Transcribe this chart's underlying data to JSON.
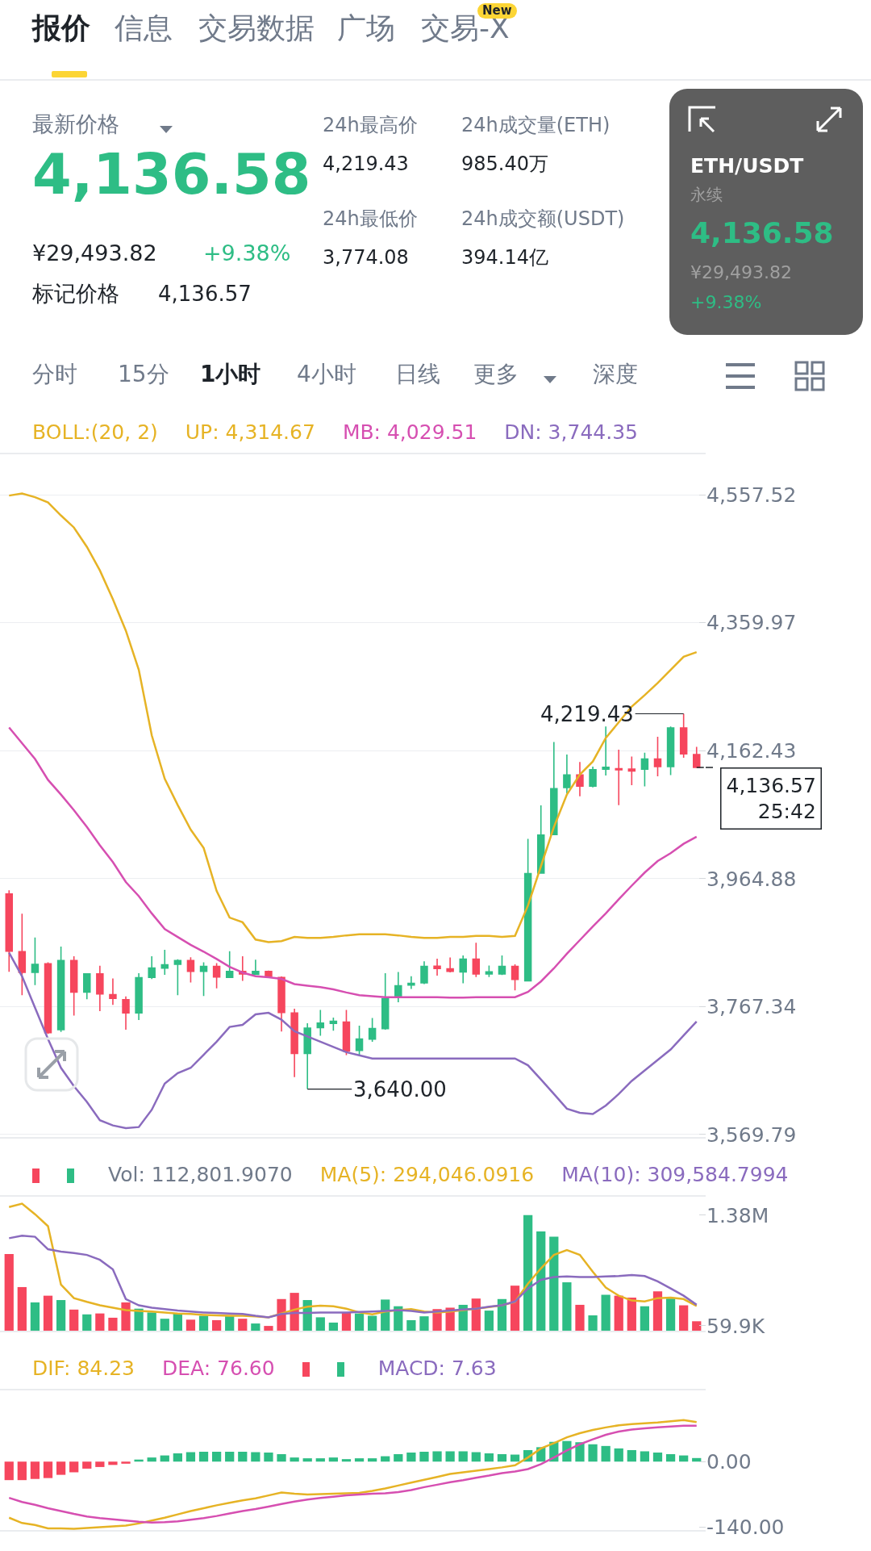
{
  "chart_data": [
    {
      "type": "other",
      "annotations": [
        "报价",
        "信息",
        "交易数据",
        "广场",
        "交易-X",
        "New",
        "最新价格",
        "4,136.58",
        "¥29,493.82",
        "+9.38%",
        "标记价格",
        "4,136.57",
        "24h最高价",
        "4,219.43",
        "24h最低价",
        "3,774.08",
        "24h成交量(ETH)",
        "985.40万",
        "24h成交额(USDT)",
        "394.14亿",
        "分时",
        "15分",
        "1小时",
        "4小时",
        "日线",
        "更多",
        "深度",
        "ETH/USDT",
        "永续",
        "4,136.58",
        "¥29,493.82",
        "+9.38%"
      ]
    },
    {
      "type": "candlestick",
      "legend_title": "BOLL:(20, 2)",
      "categories": [
        null,
        null,
        null,
        null,
        null,
        null,
        null,
        null,
        null,
        null,
        null,
        null,
        null,
        null,
        null,
        null,
        null,
        null,
        null,
        null,
        null,
        null,
        null,
        null,
        null,
        null,
        null,
        null,
        null,
        null,
        null,
        null,
        null,
        null,
        null,
        null,
        null,
        null,
        null,
        null,
        null,
        null,
        null,
        null,
        null,
        null,
        null,
        null,
        null,
        null,
        null,
        null,
        null,
        null
      ],
      "ohlc": [
        [
          3941.4,
          3946.9,
          3821.0,
          3853.0
        ],
        [
          3852.2,
          3910.9,
          3784.9,
          3820.2
        ],
        [
          3820.2,
          3874.1,
          3800.6,
          3832.7
        ],
        [
          3833.4,
          3835.8,
          3725.1,
          3727.1
        ],
        [
          3731.8,
          3860.1,
          3728.3,
          3838.6
        ],
        [
          3838.6,
          3845.1,
          3753.6,
          3789.6
        ],
        [
          3789.6,
          3817.8,
          3778.7,
          3817.8
        ],
        [
          3817.8,
          3830.4,
          3760.3,
          3786.9
        ],
        [
          3785.8,
          3810.8,
          3770.0,
          3779.9
        ],
        [
          3777.9,
          3783.0,
          3731.8,
          3757.6
        ],
        [
          3757.6,
          3819.0,
          3746.6,
          3811.9
        ],
        [
          3812.3,
          3845.1,
          3809.9,
          3826.8
        ],
        [
          3826.8,
          3855.0,
          3816.3,
          3831.9
        ],
        [
          3832.7,
          3840.5,
          3784.9,
          3838.6
        ],
        [
          3838.6,
          3843.6,
          3804.5,
          3821.7
        ],
        [
          3821.7,
          3835.8,
          3783.7,
          3829.5
        ],
        [
          3829.5,
          3834.6,
          3795.5,
          3813.1
        ],
        [
          3812.3,
          3853.0,
          3812.3,
          3821.7
        ],
        [
          3821.7,
          3845.1,
          3807.2,
          3817.8
        ],
        [
          3817.0,
          3839.8,
          3816.3,
          3821.7
        ],
        [
          3821.7,
          3822.9,
          3813.1,
          3813.9
        ],
        [
          3812.3,
          3813.9,
          3729.0,
          3758.3
        ],
        [
          3757.6,
          3764.2,
          3658.5,
          3694.9
        ],
        [
          3694.9,
          3741.8,
          3640.0,
          3734.1
        ],
        [
          3734.8,
          3762.3,
          3722.4,
          3741.8
        ],
        [
          3741.5,
          3750.5,
          3730.1,
          3744.7
        ],
        [
          3743.5,
          3762.3,
          3692.6,
          3698.9
        ],
        [
          3699.6,
          3738.0,
          3692.6,
          3717.2
        ],
        [
          3717.2,
          3749.7,
          3713.0,
          3733.4
        ],
        [
          3733.4,
          3819.0,
          3731.8,
          3779.5
        ],
        [
          3783.8,
          3820.9,
          3774.0,
          3799.4
        ],
        [
          3800.6,
          3814.3,
          3794.7,
          3803.3
        ],
        [
          3804.1,
          3837.4,
          3802.1,
          3829.5
        ],
        [
          3829.9,
          3841.3,
          3815.1,
          3826.0
        ],
        [
          3825.6,
          3843.2,
          3820.1,
          3821.7
        ],
        [
          3820.9,
          3846.4,
          3803.3,
          3840.5
        ],
        [
          3840.5,
          3865.9,
          3813.1,
          3817.8
        ],
        [
          3817.8,
          3830.7,
          3813.1,
          3820.9
        ],
        [
          3817.8,
          3846.4,
          3816.2,
          3829.5
        ],
        [
          3829.5,
          3832.7,
          3792.4,
          3809.2
        ],
        [
          3807.2,
          4026.3,
          3806.1,
          3972.7
        ],
        [
          3973.5,
          4078.0,
          3973.5,
          4032.2
        ],
        [
          4033.0,
          4175.8,
          4033.0,
          4103.8
        ],
        [
          4105.4,
          4156.6,
          4096.8,
          4124.9
        ],
        [
          4124.9,
          4144.9,
          4092.1,
          4107.7
        ],
        [
          4107.7,
          4137.8,
          4105.8,
          4133.1
        ],
        [
          4133.9,
          4199.7,
          4124.1,
          4136.7
        ],
        [
          4134.7,
          4164.1,
          4078.4,
          4132.8
        ],
        [
          4133.9,
          4153.5,
          4109.3,
          4131.2
        ],
        [
          4133.9,
          4159.4,
          4107.3,
          4149.6
        ],
        [
          4149.6,
          4184.0,
          4123.0,
          4137.8
        ],
        [
          4137.8,
          4199.7,
          4124.9,
          4197.7
        ],
        [
          4197.7,
          4219.43,
          4151.5,
          4157.4
        ],
        [
          4156.6,
          4168.4,
          4135.9,
          4136.57
        ]
      ],
      "colors": [
        "#f6465d",
        "#f6465d",
        "#2ebd85",
        "#f6465d",
        "#2ebd85",
        "#f6465d",
        "#2ebd85",
        "#f6465d",
        "#f6465d",
        "#f6465d",
        "#2ebd85",
        "#2ebd85",
        "#2ebd85",
        "#2ebd85",
        "#f6465d",
        "#2ebd85",
        "#f6465d",
        "#2ebd85",
        "#f6465d",
        "#2ebd85",
        "#f6465d",
        "#f6465d",
        "#f6465d",
        "#2ebd85",
        "#2ebd85",
        "#2ebd85",
        "#f6465d",
        "#2ebd85",
        "#2ebd85",
        "#2ebd85",
        "#2ebd85",
        "#2ebd85",
        "#2ebd85",
        "#f6465d",
        "#f6465d",
        "#2ebd85",
        "#f6465d",
        "#2ebd85",
        "#2ebd85",
        "#f6465d",
        "#2ebd85",
        "#2ebd85",
        "#2ebd85",
        "#2ebd85",
        "#f6465d",
        "#2ebd85",
        "#2ebd85",
        "#f6465d",
        "#f6465d",
        "#2ebd85",
        "#f6465d",
        "#2ebd85",
        "#f6465d",
        "#f6465d"
      ],
      "series": [
        {
          "type": "line",
          "name": "UP: 4,314.67",
          "color": "#e6b325",
          "values": [
            4556.3,
            4559.6,
            4553.9,
            4545.8,
            4525.6,
            4507.0,
            4477.1,
            4440.7,
            4396.3,
            4347.8,
            4287.2,
            4186.1,
            4119.0,
            4078.6,
            4040.6,
            4012.3,
            3946.0,
            3904.8,
            3897.5,
            3870.8,
            3866.8,
            3868.4,
            3874.9,
            3873.3,
            3873.3,
            3874.9,
            3877.3,
            3878.9,
            3878.9,
            3878.9,
            3877.3,
            3874.9,
            3873.3,
            3873.3,
            3874.9,
            3874.9,
            3876.5,
            3876.5,
            3874.9,
            3876.5,
            3923.4,
            3984.0,
            4044.6,
            4094.7,
            4125.5,
            4145.7,
            4182.1,
            4206.3,
            4230.6,
            4248.3,
            4266.9,
            4287.2,
            4307.4,
            4314.67
          ]
        },
        {
          "type": "line",
          "name": "MB: 4,029.51",
          "color": "#d64fb1",
          "values": [
            4198.2,
            4173.9,
            4149.7,
            4117.4,
            4094.7,
            4070.5,
            4044.6,
            4016.3,
            3990.5,
            3959.7,
            3937.9,
            3911.2,
            3887.0,
            3874.9,
            3862.7,
            3852.2,
            3840.9,
            3828.8,
            3819.9,
            3814.2,
            3812.6,
            3810.2,
            3802.1,
            3799.7,
            3797.3,
            3794.0,
            3789.2,
            3785.1,
            3783.5,
            3781.9,
            3781.9,
            3781.9,
            3781.9,
            3781.9,
            3781.1,
            3781.1,
            3781.9,
            3781.9,
            3781.9,
            3781.9,
            3790.0,
            3806.2,
            3826.4,
            3849.0,
            3870.0,
            3891.0,
            3911.2,
            3933.1,
            3954.1,
            3974.3,
            3992.1,
            4004.2,
            4018.7,
            4029.51
          ]
        },
        {
          "type": "line",
          "name": "DN: 3,744.35",
          "color": "#8a6bbe",
          "values": [
            3850.6,
            3814.2,
            3765.7,
            3717.3,
            3672.8,
            3644.5,
            3620.3,
            3592.0,
            3583.9,
            3579.8,
            3581.4,
            3608.1,
            3648.5,
            3664.7,
            3672.8,
            3693.0,
            3713.2,
            3735.9,
            3739.1,
            3755.3,
            3757.7,
            3747.2,
            3729.4,
            3721.3,
            3713.2,
            3705.1,
            3697.0,
            3692.2,
            3687.3,
            3687.3,
            3687.3,
            3687.3,
            3687.3,
            3687.3,
            3687.3,
            3687.3,
            3687.3,
            3687.3,
            3687.3,
            3687.3,
            3676.8,
            3655.0,
            3632.4,
            3609.7,
            3603.3,
            3601.6,
            3614.6,
            3632.4,
            3652.6,
            3668.7,
            3684.9,
            3701.1,
            3722.9,
            3744.35
          ]
        }
      ],
      "ylim": [
        3566,
        4620
      ],
      "yticks": [
        {
          "value": 3569.79,
          "label": "3,569.79"
        },
        {
          "value": 3767.34,
          "label": "3,767.34"
        },
        {
          "value": 3964.88,
          "label": "3,964.88"
        },
        {
          "value": 4162.43,
          "label": "4,162.43"
        },
        {
          "value": 4359.97,
          "label": "4,359.97"
        },
        {
          "value": 4557.52,
          "label": "4,557.52"
        }
      ],
      "grid": "y",
      "ref_lines": [
        {
          "axis": "y",
          "value": 4136.57,
          "label": "4,136.57",
          "line_style": "dashed"
        }
      ],
      "annotations": [
        "4,219.43",
        "3,640.00",
        "25:42"
      ]
    },
    {
      "type": "bar",
      "categories": [
        null,
        null,
        null,
        null,
        null,
        null,
        null,
        null,
        null,
        null,
        null,
        null,
        null,
        null,
        null,
        null,
        null,
        null,
        null,
        null,
        null,
        null,
        null,
        null,
        null,
        null,
        null,
        null,
        null,
        null,
        null,
        null,
        null,
        null,
        null,
        null,
        null,
        null,
        null,
        null,
        null,
        null,
        null,
        null,
        null,
        null,
        null,
        null,
        null,
        null,
        null,
        null,
        null,
        null
      ],
      "series": [
        {
          "type": "bar",
          "name": "Vol: 112,801.9070",
          "color": "#707a8a",
          "colors": [
            "#f6465d",
            "#f6465d",
            "#2ebd85",
            "#f6465d",
            "#2ebd85",
            "#f6465d",
            "#2ebd85",
            "#f6465d",
            "#f6465d",
            "#f6465d",
            "#2ebd85",
            "#2ebd85",
            "#2ebd85",
            "#2ebd85",
            "#f6465d",
            "#2ebd85",
            "#f6465d",
            "#2ebd85",
            "#f6465d",
            "#2ebd85",
            "#f6465d",
            "#f6465d",
            "#f6465d",
            "#2ebd85",
            "#2ebd85",
            "#2ebd85",
            "#f6465d",
            "#2ebd85",
            "#2ebd85",
            "#2ebd85",
            "#2ebd85",
            "#2ebd85",
            "#2ebd85",
            "#f6465d",
            "#f6465d",
            "#2ebd85",
            "#f6465d",
            "#2ebd85",
            "#2ebd85",
            "#f6465d",
            "#2ebd85",
            "#2ebd85",
            "#2ebd85",
            "#2ebd85",
            "#f6465d",
            "#2ebd85",
            "#2ebd85",
            "#f6465d",
            "#f6465d",
            "#2ebd85",
            "#f6465d",
            "#2ebd85",
            "#f6465d",
            "#f6465d"
          ],
          "values": [
            916000,
            521000,
            338000,
            418000,
            366000,
            252000,
            195000,
            206000,
            155000,
            338000,
            263000,
            218000,
            143000,
            206000,
            132000,
            178000,
            126000,
            172000,
            143000,
            86000,
            57000,
            378000,
            452000,
            366000,
            160000,
            97000,
            218000,
            206000,
            178000,
            372000,
            292000,
            126000,
            172000,
            258000,
            275000,
            309000,
            384000,
            240000,
            378000,
            538000,
            1380000,
            1185000,
            1122000,
            578000,
            309000,
            183000,
            429000,
            418000,
            395000,
            292000,
            470000,
            384000,
            303000,
            112801.907
          ]
        },
        {
          "type": "line",
          "name": "MA(5): 294,046.0916",
          "color": "#e6b325",
          "values": [
            1477000,
            1517000,
            1391000,
            1248000,
            550000,
            389000,
            344000,
            303000,
            275000,
            246000,
            235000,
            229000,
            218000,
            206000,
            200000,
            189000,
            183000,
            178000,
            178000,
            172000,
            160000,
            206000,
            252000,
            286000,
            298000,
            292000,
            263000,
            218000,
            195000,
            229000,
            246000,
            258000,
            229000,
            218000,
            229000,
            246000,
            263000,
            281000,
            303000,
            344000,
            561000,
            744000,
            905000,
            962000,
            905000,
            704000,
            515000,
            418000,
            361000,
            349000,
            389000,
            395000,
            378000,
            294046.0916
          ]
        },
        {
          "type": "line",
          "name": "MA(10): 309,584.7994",
          "color": "#8a6bbe",
          "values": [
            1105000,
            1134000,
            1122000,
            973000,
            945000,
            928000,
            905000,
            847000,
            733000,
            378000,
            303000,
            275000,
            258000,
            240000,
            229000,
            218000,
            212000,
            206000,
            200000,
            178000,
            160000,
            200000,
            212000,
            212000,
            218000,
            218000,
            218000,
            223000,
            229000,
            235000,
            246000,
            235000,
            218000,
            229000,
            240000,
            252000,
            263000,
            286000,
            303000,
            349000,
            504000,
            607000,
            641000,
            647000,
            641000,
            641000,
            647000,
            653000,
            664000,
            653000,
            590000,
            504000,
            418000,
            309584.7994
          ]
        }
      ],
      "ylim": [
        0,
        1600000
      ],
      "yticks": [
        {
          "value": 59900,
          "label": "59.9K"
        },
        {
          "value": 1380000,
          "label": "1.38M"
        }
      ]
    },
    {
      "type": "bar",
      "categories": [
        null,
        null,
        null,
        null,
        null,
        null,
        null,
        null,
        null,
        null,
        null,
        null,
        null,
        null,
        null,
        null,
        null,
        null,
        null,
        null,
        null,
        null,
        null,
        null,
        null,
        null,
        null,
        null,
        null,
        null,
        null,
        null,
        null,
        null,
        null,
        null,
        null,
        null,
        null,
        null,
        null,
        null,
        null,
        null,
        null,
        null,
        null,
        null,
        null,
        null,
        null,
        null,
        null,
        null
      ],
      "series": [
        {
          "type": "line",
          "name": "DIF: 84.23",
          "color": "#e6b325",
          "values": [
            -119.7,
            -131.1,
            -135.4,
            -142.5,
            -142.5,
            -143.3,
            -141.6,
            -139.8,
            -138.1,
            -136.4,
            -132.0,
            -125.8,
            -119.7,
            -112.6,
            -105.5,
            -99.4,
            -93.2,
            -88.0,
            -82.7,
            -78.3,
            -72.1,
            -66.0,
            -68.6,
            -70.4,
            -69.5,
            -68.6,
            -67.7,
            -66.9,
            -62.5,
            -57.2,
            -51.0,
            -44.9,
            -38.7,
            -32.6,
            -26.4,
            -22.8,
            -19.4,
            -15.9,
            -12.3,
            -7.9,
            8.8,
            28.2,
            39.5,
            51.9,
            60.6,
            67.7,
            73.0,
            77.4,
            80.0,
            81.8,
            83.6,
            86.2,
            88.8,
            84.23
          ]
        },
        {
          "type": "line",
          "name": "DEA: 76.60",
          "color": "#d64fb1",
          "values": [
            -77.4,
            -86.2,
            -92.3,
            -99.4,
            -105.5,
            -111.7,
            -117.0,
            -120.5,
            -123.1,
            -125.8,
            -128.4,
            -130.2,
            -129.3,
            -127.5,
            -124.1,
            -120.5,
            -116.1,
            -110.8,
            -105.5,
            -101.1,
            -95.9,
            -90.6,
            -85.3,
            -80.9,
            -77.4,
            -74.8,
            -72.1,
            -70.4,
            -68.6,
            -67.7,
            -65.1,
            -60.6,
            -54.5,
            -49.3,
            -44.0,
            -39.5,
            -34.3,
            -29.9,
            -24.6,
            -21.1,
            -15.9,
            -5.3,
            8.8,
            23.8,
            37.0,
            47.5,
            57.2,
            64.2,
            68.6,
            71.2,
            73.0,
            74.8,
            76.5,
            76.6
          ]
        },
        {
          "type": "bar",
          "name": "MACD: 7.63",
          "color": "#8a6bbe",
          "colors": [
            "#f6465d",
            "#f6465d",
            "#f6465d",
            "#f6465d",
            "#f6465d",
            "#f6465d",
            "#f6465d",
            "#f6465d",
            "#f6465d",
            "#f6465d",
            "#2ebd85",
            "#2ebd85",
            "#2ebd85",
            "#2ebd85",
            "#2ebd85",
            "#2ebd85",
            "#2ebd85",
            "#2ebd85",
            "#2ebd85",
            "#2ebd85",
            "#2ebd85",
            "#2ebd85",
            "#2ebd85",
            "#2ebd85",
            "#2ebd85",
            "#2ebd85",
            "#2ebd85",
            "#2ebd85",
            "#2ebd85",
            "#2ebd85",
            "#2ebd85",
            "#2ebd85",
            "#2ebd85",
            "#2ebd85",
            "#2ebd85",
            "#2ebd85",
            "#2ebd85",
            "#2ebd85",
            "#2ebd85",
            "#2ebd85",
            "#2ebd85",
            "#2ebd85",
            "#2ebd85",
            "#2ebd85",
            "#2ebd85",
            "#2ebd85",
            "#2ebd85",
            "#2ebd85",
            "#2ebd85",
            "#2ebd85",
            "#2ebd85",
            "#2ebd85",
            "#2ebd85",
            "#2ebd85"
          ],
          "values": [
            -39.5,
            -39.5,
            -37.0,
            -35.1,
            -28.2,
            -22.8,
            -15.0,
            -11.5,
            -7.1,
            -4.4,
            4.4,
            8.8,
            13.2,
            17.6,
            20.2,
            21.1,
            21.1,
            21.1,
            21.1,
            20.2,
            19.4,
            15.9,
            8.8,
            7.1,
            7.1,
            8.8,
            5.3,
            7.1,
            7.1,
            11.5,
            15.9,
            19.4,
            21.1,
            22.0,
            22.0,
            22.0,
            20.2,
            17.6,
            15.9,
            15.0,
            24.6,
            30.8,
            42.2,
            44.0,
            41.4,
            37.0,
            33.4,
            28.2,
            24.6,
            22.0,
            19.4,
            15.9,
            13.2,
            7.63
          ]
        }
      ],
      "ylim": [
        -146,
        152
      ],
      "yticks": [
        {
          "value": -140,
          "label": "-140.00"
        },
        {
          "value": 0,
          "label": "0.00"
        }
      ]
    }
  ]
}
